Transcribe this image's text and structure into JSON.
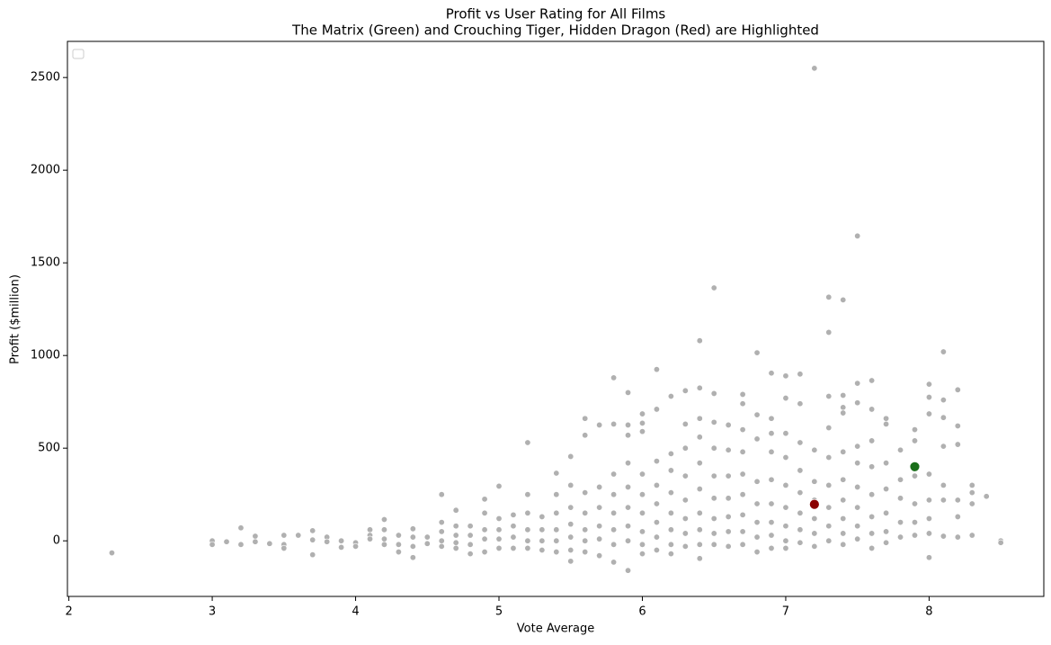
{
  "chart_data": {
    "type": "scatter",
    "title": "Profit vs User Rating for All Films",
    "subtitle": "The Matrix (Green) and Crouching Tiger, Hidden Dragon (Red) are Highlighted",
    "x_label": "Vote Average",
    "y_label": "Profit ($million)",
    "xlim": [
      1.99,
      8.8
    ],
    "ylim": [
      -300,
      2695
    ],
    "xticks": [
      2,
      3,
      4,
      5,
      6,
      7,
      8
    ],
    "yticks": [
      0,
      500,
      1000,
      1500,
      2000,
      2500
    ],
    "legend": "upper left",
    "series": [
      {
        "color": "#b0b0b0",
        "x": [
          2.3,
          3.0,
          3.0,
          3.1,
          3.2,
          3.2,
          3.3,
          3.3,
          3.4,
          3.5,
          3.5,
          3.5,
          3.6,
          3.7,
          3.7,
          3.7,
          3.8,
          3.8,
          3.9,
          3.9,
          4.0,
          4.0,
          4.1,
          4.1,
          4.1,
          4.2,
          4.2,
          4.2,
          4.2,
          4.3,
          4.3,
          4.3,
          4.4,
          4.4,
          4.4,
          4.4,
          4.5,
          4.5,
          4.6,
          4.6,
          4.6,
          4.6,
          4.6,
          4.7,
          4.7,
          4.7,
          4.7,
          4.7,
          4.8,
          4.8,
          4.8,
          4.8,
          4.9,
          4.9,
          4.9,
          4.9,
          4.9,
          5.0,
          5.0,
          5.0,
          5.0,
          5.0,
          5.1,
          5.1,
          5.1,
          5.1,
          5.2,
          5.2,
          5.2,
          5.2,
          5.2,
          5.2,
          5.3,
          5.3,
          5.3,
          5.3,
          5.4,
          5.4,
          5.4,
          5.4,
          5.4,
          5.4,
          5.5,
          5.5,
          5.5,
          5.5,
          5.5,
          5.5,
          5.5,
          5.6,
          5.6,
          5.6,
          5.6,
          5.6,
          5.6,
          5.6,
          5.7,
          5.7,
          5.7,
          5.7,
          5.7,
          5.7,
          5.8,
          5.8,
          5.8,
          5.8,
          5.8,
          5.8,
          5.8,
          5.8,
          5.9,
          5.9,
          5.9,
          5.9,
          5.9,
          5.9,
          5.9,
          5.9,
          5.9,
          6.0,
          6.0,
          6.0,
          6.0,
          6.0,
          6.0,
          6.0,
          6.0,
          6.0,
          6.1,
          6.1,
          6.1,
          6.1,
          6.1,
          6.1,
          6.1,
          6.1,
          6.2,
          6.2,
          6.2,
          6.2,
          6.2,
          6.2,
          6.2,
          6.2,
          6.3,
          6.3,
          6.3,
          6.3,
          6.3,
          6.3,
          6.3,
          6.3,
          6.4,
          6.4,
          6.4,
          6.4,
          6.4,
          6.4,
          6.4,
          6.4,
          6.4,
          6.4,
          6.5,
          6.5,
          6.5,
          6.5,
          6.5,
          6.5,
          6.5,
          6.5,
          6.5,
          6.6,
          6.6,
          6.6,
          6.6,
          6.6,
          6.6,
          6.6,
          6.7,
          6.7,
          6.7,
          6.7,
          6.7,
          6.7,
          6.7,
          6.7,
          6.7,
          6.8,
          6.8,
          6.8,
          6.8,
          6.8,
          6.8,
          6.8,
          6.8,
          6.9,
          6.9,
          6.9,
          6.9,
          6.9,
          6.9,
          6.9,
          6.9,
          6.9,
          7.0,
          7.0,
          7.0,
          7.0,
          7.0,
          7.0,
          7.0,
          7.0,
          7.0,
          7.1,
          7.1,
          7.1,
          7.1,
          7.1,
          7.1,
          7.1,
          7.1,
          7.2,
          7.2,
          7.2,
          7.2,
          7.2,
          7.2,
          7.2,
          7.3,
          7.3,
          7.3,
          7.3,
          7.3,
          7.3,
          7.3,
          7.3,
          7.3,
          7.4,
          7.4,
          7.4,
          7.4,
          7.4,
          7.4,
          7.4,
          7.4,
          7.4,
          7.4,
          7.5,
          7.5,
          7.5,
          7.5,
          7.5,
          7.5,
          7.5,
          7.5,
          7.5,
          7.6,
          7.6,
          7.6,
          7.6,
          7.6,
          7.6,
          7.6,
          7.6,
          7.7,
          7.7,
          7.7,
          7.7,
          7.7,
          7.7,
          7.7,
          7.8,
          7.8,
          7.8,
          7.8,
          7.8,
          7.9,
          7.9,
          7.9,
          7.9,
          7.9,
          7.9,
          8.0,
          8.0,
          8.0,
          8.0,
          8.0,
          8.0,
          8.0,
          8.0,
          8.1,
          8.1,
          8.1,
          8.1,
          8.1,
          8.1,
          8.1,
          8.2,
          8.2,
          8.2,
          8.2,
          8.2,
          8.2,
          8.3,
          8.3,
          8.3,
          8.3,
          8.4,
          8.5,
          8.5
        ],
        "values": [
          -65,
          0,
          -20,
          -5,
          70,
          -20,
          25,
          -5,
          -15,
          30,
          -20,
          -40,
          30,
          55,
          5,
          -75,
          20,
          -5,
          0,
          -35,
          -10,
          -30,
          60,
          30,
          10,
          115,
          60,
          10,
          -20,
          30,
          -20,
          -60,
          65,
          20,
          -30,
          -90,
          20,
          -15,
          250,
          100,
          50,
          0,
          -30,
          165,
          80,
          30,
          -10,
          -40,
          80,
          30,
          -20,
          -70,
          225,
          150,
          60,
          10,
          -60,
          295,
          120,
          60,
          10,
          -40,
          140,
          80,
          20,
          -40,
          530,
          250,
          150,
          60,
          0,
          -40,
          130,
          60,
          0,
          -50,
          365,
          250,
          150,
          60,
          0,
          -60,
          455,
          300,
          180,
          90,
          20,
          -50,
          -110,
          660,
          570,
          260,
          150,
          60,
          0,
          -60,
          625,
          290,
          180,
          80,
          10,
          -80,
          880,
          630,
          360,
          250,
          150,
          60,
          -20,
          -115,
          800,
          625,
          570,
          420,
          290,
          180,
          80,
          0,
          -160,
          685,
          635,
          590,
          360,
          250,
          150,
          50,
          -20,
          -70,
          925,
          710,
          430,
          300,
          200,
          100,
          20,
          -50,
          780,
          470,
          380,
          260,
          150,
          60,
          -20,
          -70,
          810,
          630,
          500,
          350,
          220,
          120,
          40,
          -30,
          1080,
          825,
          660,
          560,
          420,
          280,
          150,
          60,
          -20,
          -95,
          1365,
          795,
          640,
          500,
          350,
          230,
          120,
          40,
          -20,
          625,
          490,
          350,
          230,
          130,
          50,
          -30,
          790,
          740,
          600,
          480,
          360,
          250,
          140,
          50,
          -20,
          1015,
          680,
          550,
          320,
          200,
          100,
          20,
          -60,
          905,
          660,
          580,
          480,
          330,
          200,
          100,
          30,
          -40,
          890,
          770,
          580,
          450,
          300,
          180,
          80,
          0,
          -40,
          900,
          740,
          530,
          380,
          260,
          150,
          60,
          -10,
          2550,
          490,
          320,
          220,
          120,
          40,
          -30,
          1315,
          1125,
          780,
          610,
          450,
          300,
          180,
          80,
          0,
          1300,
          785,
          720,
          690,
          480,
          330,
          220,
          120,
          40,
          -20,
          1645,
          850,
          745,
          510,
          420,
          290,
          180,
          80,
          10,
          865,
          710,
          540,
          400,
          250,
          130,
          40,
          -40,
          660,
          630,
          420,
          280,
          150,
          50,
          -10,
          490,
          330,
          230,
          100,
          20,
          600,
          540,
          350,
          200,
          100,
          30,
          845,
          775,
          685,
          360,
          220,
          120,
          40,
          -90,
          1020,
          760,
          665,
          510,
          300,
          220,
          25,
          815,
          620,
          520,
          220,
          130,
          20,
          300,
          260,
          200,
          30,
          240,
          0,
          -10
        ]
      },
      {
        "color": "#1a6e1a",
        "x": [
          7.9
        ],
        "values": [
          400
        ]
      },
      {
        "color": "#8b0000",
        "x": [
          7.2
        ],
        "values": [
          197
        ]
      }
    ]
  }
}
